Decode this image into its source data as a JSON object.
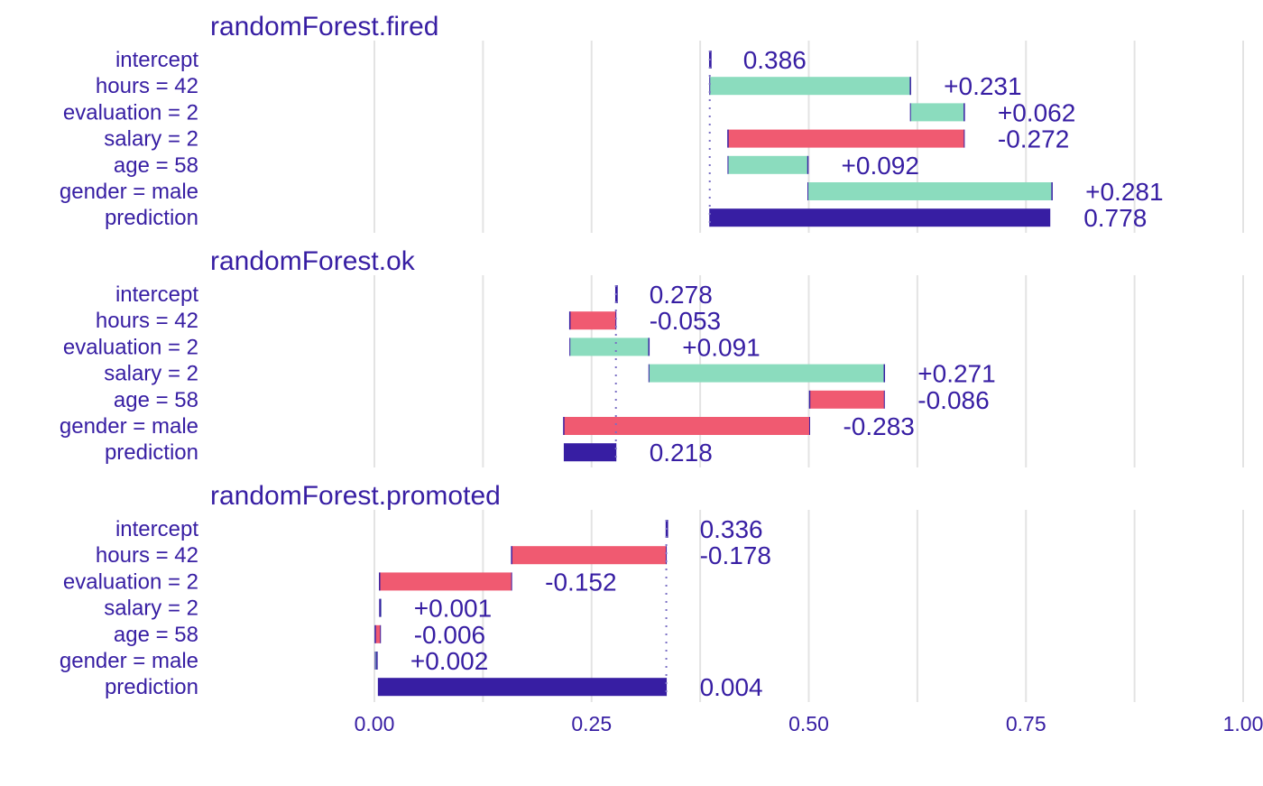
{
  "colors": {
    "text": "#371ea3",
    "positive": "#8bdcbe",
    "negative": "#f05a71",
    "prediction": "#371ea3",
    "grid": "#e3e3e3"
  },
  "chart_data": {
    "type": "bar",
    "subtype": "break-down waterfall",
    "xlim": [
      -0.25,
      1.0
    ],
    "x_ticks": [
      0.0,
      0.25,
      0.5,
      0.75,
      1.0
    ],
    "x_tick_labels": [
      "0.00",
      "0.25",
      "0.50",
      "0.75",
      "1.00"
    ],
    "grid": true,
    "panels": [
      {
        "title": "randomForest.fired",
        "rows": [
          {
            "label": "intercept",
            "kind": "intercept",
            "start": 0.386,
            "end": 0.386,
            "text": "0.386"
          },
          {
            "label": "hours = 42",
            "kind": "positive",
            "start": 0.386,
            "end": 0.617,
            "text": "+0.231"
          },
          {
            "label": "evaluation = 2",
            "kind": "positive",
            "start": 0.617,
            "end": 0.679,
            "text": "+0.062"
          },
          {
            "label": "salary = 2",
            "kind": "negative",
            "start": 0.679,
            "end": 0.407,
            "text": "-0.272"
          },
          {
            "label": "age = 58",
            "kind": "positive",
            "start": 0.407,
            "end": 0.499,
            "text": "+0.092"
          },
          {
            "label": "gender = male",
            "kind": "positive",
            "start": 0.499,
            "end": 0.78,
            "text": "+0.281"
          },
          {
            "label": "prediction",
            "kind": "prediction",
            "start": 0.386,
            "end": 0.778,
            "text": "0.778"
          }
        ]
      },
      {
        "title": "randomForest.ok",
        "rows": [
          {
            "label": "intercept",
            "kind": "intercept",
            "start": 0.278,
            "end": 0.278,
            "text": "0.278"
          },
          {
            "label": "hours = 42",
            "kind": "negative",
            "start": 0.278,
            "end": 0.225,
            "text": "-0.053"
          },
          {
            "label": "evaluation = 2",
            "kind": "positive",
            "start": 0.225,
            "end": 0.316,
            "text": "+0.091"
          },
          {
            "label": "salary = 2",
            "kind": "positive",
            "start": 0.316,
            "end": 0.587,
            "text": "+0.271"
          },
          {
            "label": "age = 58",
            "kind": "negative",
            "start": 0.587,
            "end": 0.501,
            "text": "-0.086"
          },
          {
            "label": "gender = male",
            "kind": "negative",
            "start": 0.501,
            "end": 0.218,
            "text": "-0.283"
          },
          {
            "label": "prediction",
            "kind": "prediction",
            "start": 0.278,
            "end": 0.218,
            "text": "0.218"
          }
        ]
      },
      {
        "title": "randomForest.promoted",
        "rows": [
          {
            "label": "intercept",
            "kind": "intercept",
            "start": 0.336,
            "end": 0.336,
            "text": "0.336"
          },
          {
            "label": "hours = 42",
            "kind": "negative",
            "start": 0.336,
            "end": 0.158,
            "text": "-0.178"
          },
          {
            "label": "evaluation = 2",
            "kind": "negative",
            "start": 0.158,
            "end": 0.006,
            "text": "-0.152"
          },
          {
            "label": "salary = 2",
            "kind": "positive",
            "start": 0.006,
            "end": 0.007,
            "text": "+0.001"
          },
          {
            "label": "age = 58",
            "kind": "negative",
            "start": 0.007,
            "end": 0.001,
            "text": "-0.006"
          },
          {
            "label": "gender = male",
            "kind": "positive",
            "start": 0.001,
            "end": 0.003,
            "text": "+0.002"
          },
          {
            "label": "prediction",
            "kind": "prediction",
            "start": 0.336,
            "end": 0.004,
            "text": "0.004"
          }
        ]
      }
    ]
  }
}
